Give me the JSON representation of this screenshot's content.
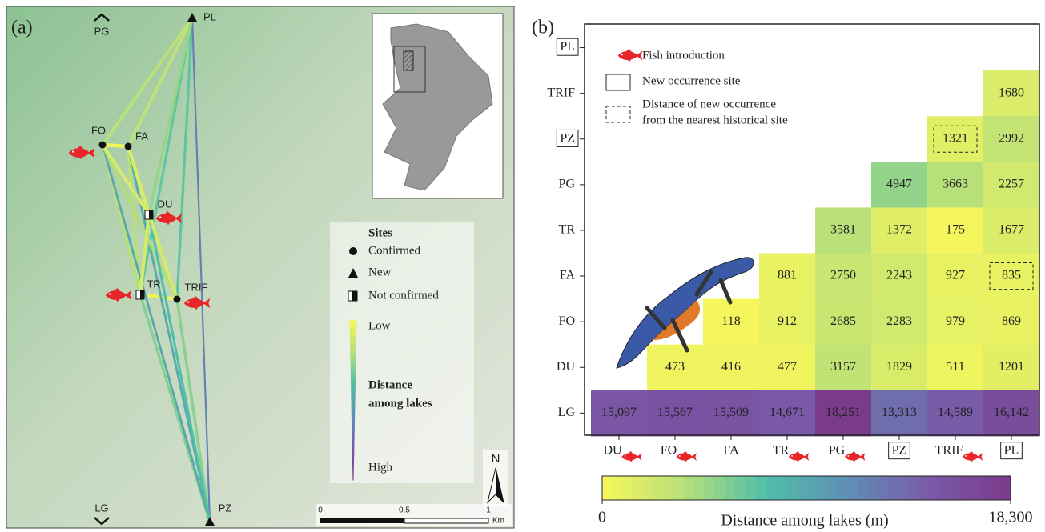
{
  "map": {
    "panel_label": "(a)",
    "sites": [
      "PL",
      "FO",
      "FA",
      "DU",
      "TR",
      "TRIF",
      "PZ"
    ],
    "direction_labels": [
      "PG",
      "LG"
    ],
    "legend": {
      "title": "Sites",
      "entries": [
        "Confirmed",
        "New",
        "Not confirmed"
      ],
      "low": "Low",
      "gradient_title": [
        "Distance",
        "among lakes"
      ],
      "high": "High"
    },
    "north": "N",
    "scale": {
      "ticks": [
        0,
        0.5,
        1
      ],
      "unit": "Km"
    }
  },
  "chart_data": {
    "type": "heatmap",
    "panel_label": "(b)",
    "x_categories": [
      "DU",
      "FO",
      "FA",
      "TR",
      "PG",
      "PZ",
      "TRIF",
      "PL"
    ],
    "y_categories": [
      "PL",
      "TRIF",
      "PZ",
      "PG",
      "TR",
      "FA",
      "FO",
      "DU",
      "LG"
    ],
    "values": [
      [
        null,
        null,
        null,
        null,
        null,
        null,
        null,
        null
      ],
      [
        null,
        null,
        null,
        null,
        null,
        null,
        null,
        1680
      ],
      [
        null,
        null,
        null,
        null,
        null,
        null,
        1321,
        2992
      ],
      [
        null,
        null,
        null,
        null,
        null,
        4947,
        3663,
        2257
      ],
      [
        null,
        null,
        null,
        null,
        3581,
        1372,
        175,
        1677
      ],
      [
        null,
        null,
        null,
        881,
        2750,
        2243,
        927,
        835
      ],
      [
        null,
        null,
        118,
        912,
        2685,
        2283,
        979,
        869
      ],
      [
        null,
        473,
        416,
        477,
        3157,
        1829,
        511,
        1201
      ],
      [
        15097,
        15567,
        15509,
        14671,
        18251,
        13313,
        14589,
        16142
      ]
    ],
    "value_labels": [
      [
        null,
        null,
        null,
        null,
        null,
        null,
        null,
        null
      ],
      [
        null,
        null,
        null,
        null,
        null,
        null,
        null,
        "1680"
      ],
      [
        null,
        null,
        null,
        null,
        null,
        null,
        "1321",
        "2992"
      ],
      [
        null,
        null,
        null,
        null,
        null,
        "4947",
        "3663",
        "2257"
      ],
      [
        null,
        null,
        null,
        null,
        "3581",
        "1372",
        "175",
        "1677"
      ],
      [
        null,
        null,
        null,
        "881",
        "2750",
        "2243",
        "927",
        "835"
      ],
      [
        null,
        null,
        "118",
        "912",
        "2685",
        "2283",
        "979",
        "869"
      ],
      [
        null,
        "473",
        "416",
        "477",
        "3157",
        "1829",
        "511",
        "1201"
      ],
      [
        "15,097",
        "15,567",
        "15,509",
        "14,671",
        "18,251",
        "13,313",
        "14,589",
        "16,142"
      ]
    ],
    "colormap": [
      "#f7f75a",
      "#b8e07a",
      "#4fbfa8",
      "#5f8fb5",
      "#7a5aa8",
      "#7b3b8b"
    ],
    "fish_x": [
      0,
      1,
      3,
      4,
      6
    ],
    "boxed_x": [
      5,
      7
    ],
    "boxed_y": [
      0,
      2
    ],
    "dashed_cells": [
      [
        2,
        6
      ],
      [
        5,
        7
      ]
    ],
    "legend": {
      "fish": "Fish introduction",
      "new_site": "New occurrence site",
      "distance_note": [
        "Distance of new occurrence",
        "from the nearest historical site"
      ]
    },
    "colorbar": {
      "title": "Distance among lakes (m)",
      "lim": [
        0,
        18300
      ],
      "ticks": [
        0,
        {
          "value": 18300,
          "label": "18,300"
        }
      ]
    }
  }
}
